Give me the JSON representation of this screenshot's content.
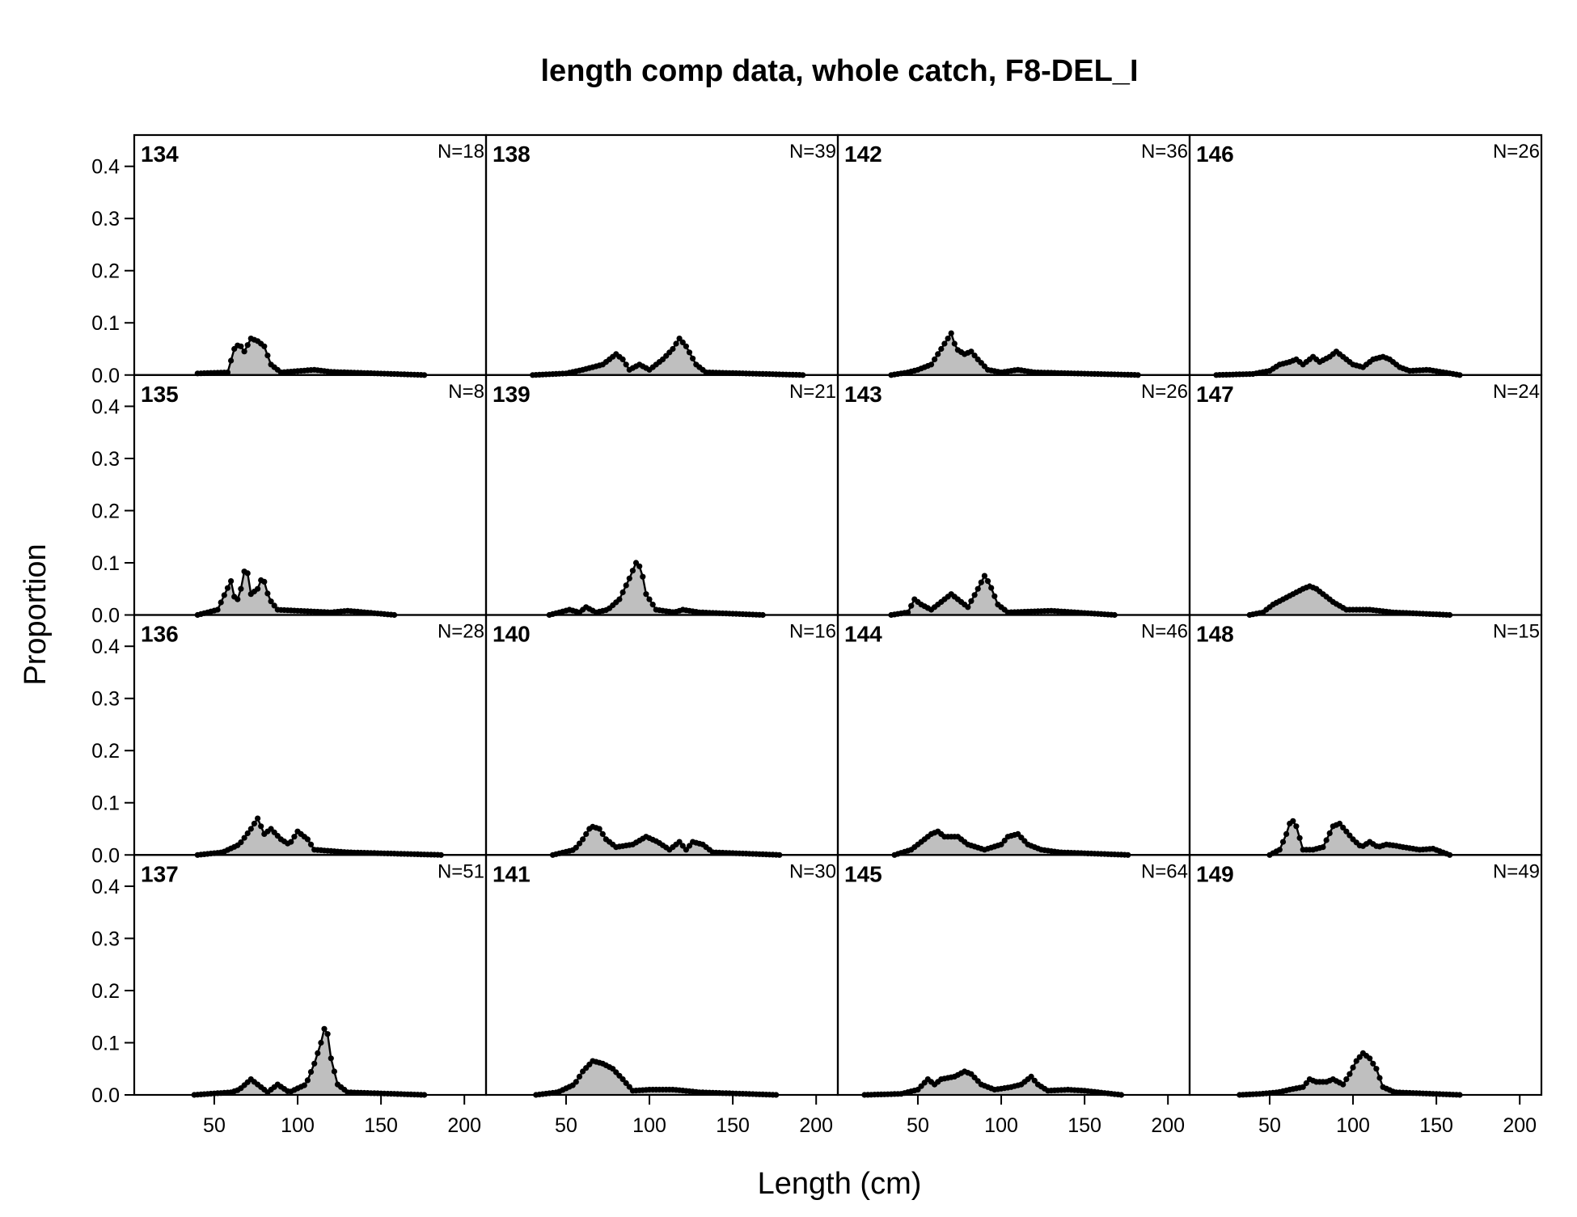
{
  "chart_data": {
    "type": "area",
    "title": "length comp data, whole catch, F8-DEL_I",
    "xlabel": "Length (cm)",
    "ylabel": "Proportion",
    "xlim": [
      2,
      213
    ],
    "ylim": [
      0,
      0.46
    ],
    "x_ticks": [
      50,
      100,
      150,
      200
    ],
    "x_tick_labels": [
      "50",
      "100",
      "150",
      "200"
    ],
    "y_ticks": [
      0,
      0.1,
      0.2,
      0.3,
      0.4
    ],
    "y_tick_labels": [
      "0.0",
      "0.1",
      "0.2",
      "0.3",
      "0.4"
    ],
    "grid": false,
    "layout": {
      "columns": 4,
      "rows": 4,
      "order": "column-major"
    },
    "fill_color": "#bfbfbf",
    "line_color": "#000000",
    "panels": [
      {
        "label": "134",
        "n_label": "N=18",
        "x_start": 40,
        "x_end": 176,
        "peaks": [
          [
            40,
            0.003
          ],
          [
            58,
            0.005
          ],
          [
            62,
            0.05
          ],
          [
            65,
            0.06
          ],
          [
            68,
            0.045
          ],
          [
            72,
            0.07
          ],
          [
            76,
            0.065
          ],
          [
            80,
            0.055
          ],
          [
            84,
            0.02
          ],
          [
            90,
            0.005
          ],
          [
            110,
            0.01
          ],
          [
            120,
            0.006
          ],
          [
            176,
            0.0
          ]
        ]
      },
      {
        "label": "135",
        "n_label": "N=8",
        "x_start": 40,
        "x_end": 158,
        "peaks": [
          [
            40,
            0.0
          ],
          [
            52,
            0.01
          ],
          [
            57,
            0.045
          ],
          [
            60,
            0.065
          ],
          [
            63,
            0.02
          ],
          [
            66,
            0.05
          ],
          [
            69,
            0.1
          ],
          [
            72,
            0.04
          ],
          [
            76,
            0.05
          ],
          [
            79,
            0.075
          ],
          [
            83,
            0.03
          ],
          [
            88,
            0.01
          ],
          [
            120,
            0.005
          ],
          [
            130,
            0.008
          ],
          [
            158,
            0.0
          ]
        ]
      },
      {
        "label": "136",
        "n_label": "N=28",
        "x_start": 40,
        "x_end": 186,
        "peaks": [
          [
            40,
            0.0
          ],
          [
            55,
            0.005
          ],
          [
            65,
            0.02
          ],
          [
            72,
            0.05
          ],
          [
            76,
            0.07
          ],
          [
            80,
            0.04
          ],
          [
            84,
            0.05
          ],
          [
            90,
            0.03
          ],
          [
            95,
            0.02
          ],
          [
            100,
            0.045
          ],
          [
            106,
            0.03
          ],
          [
            110,
            0.01
          ],
          [
            130,
            0.005
          ],
          [
            186,
            0.0
          ]
        ]
      },
      {
        "label": "137",
        "n_label": "N=51",
        "x_start": 38,
        "x_end": 176,
        "peaks": [
          [
            38,
            0.0
          ],
          [
            60,
            0.005
          ],
          [
            65,
            0.01
          ],
          [
            72,
            0.03
          ],
          [
            76,
            0.02
          ],
          [
            82,
            0.005
          ],
          [
            88,
            0.02
          ],
          [
            95,
            0.005
          ],
          [
            105,
            0.02
          ],
          [
            110,
            0.06
          ],
          [
            114,
            0.1
          ],
          [
            117,
            0.14
          ],
          [
            120,
            0.07
          ],
          [
            124,
            0.02
          ],
          [
            130,
            0.005
          ],
          [
            176,
            0.0
          ]
        ]
      },
      {
        "label": "138",
        "n_label": "N=39",
        "x_start": 30,
        "x_end": 192,
        "peaks": [
          [
            30,
            0.0
          ],
          [
            50,
            0.003
          ],
          [
            60,
            0.01
          ],
          [
            72,
            0.02
          ],
          [
            80,
            0.04
          ],
          [
            84,
            0.03
          ],
          [
            88,
            0.01
          ],
          [
            94,
            0.02
          ],
          [
            100,
            0.01
          ],
          [
            108,
            0.03
          ],
          [
            114,
            0.05
          ],
          [
            118,
            0.07
          ],
          [
            122,
            0.055
          ],
          [
            128,
            0.02
          ],
          [
            134,
            0.005
          ],
          [
            192,
            0.0
          ]
        ]
      },
      {
        "label": "139",
        "n_label": "N=21",
        "x_start": 40,
        "x_end": 168,
        "peaks": [
          [
            40,
            0.0
          ],
          [
            52,
            0.01
          ],
          [
            58,
            0.005
          ],
          [
            62,
            0.015
          ],
          [
            68,
            0.005
          ],
          [
            75,
            0.01
          ],
          [
            82,
            0.03
          ],
          [
            88,
            0.07
          ],
          [
            92,
            0.1
          ],
          [
            95,
            0.09
          ],
          [
            98,
            0.04
          ],
          [
            104,
            0.01
          ],
          [
            115,
            0.005
          ],
          [
            120,
            0.01
          ],
          [
            130,
            0.005
          ],
          [
            168,
            0.0
          ]
        ]
      },
      {
        "label": "140",
        "n_label": "N=16",
        "x_start": 42,
        "x_end": 178,
        "peaks": [
          [
            42,
            0.0
          ],
          [
            55,
            0.01
          ],
          [
            60,
            0.03
          ],
          [
            65,
            0.055
          ],
          [
            70,
            0.05
          ],
          [
            74,
            0.03
          ],
          [
            80,
            0.015
          ],
          [
            90,
            0.02
          ],
          [
            98,
            0.035
          ],
          [
            105,
            0.025
          ],
          [
            112,
            0.01
          ],
          [
            118,
            0.025
          ],
          [
            122,
            0.01
          ],
          [
            126,
            0.025
          ],
          [
            132,
            0.02
          ],
          [
            138,
            0.005
          ],
          [
            178,
            0.0
          ]
        ]
      },
      {
        "label": "141",
        "n_label": "N=30",
        "x_start": 32,
        "x_end": 176,
        "peaks": [
          [
            32,
            0.0
          ],
          [
            45,
            0.005
          ],
          [
            55,
            0.02
          ],
          [
            60,
            0.045
          ],
          [
            66,
            0.065
          ],
          [
            72,
            0.06
          ],
          [
            78,
            0.05
          ],
          [
            84,
            0.03
          ],
          [
            90,
            0.008
          ],
          [
            100,
            0.01
          ],
          [
            115,
            0.01
          ],
          [
            130,
            0.005
          ],
          [
            176,
            0.0
          ]
        ]
      },
      {
        "label": "142",
        "n_label": "N=36",
        "x_start": 34,
        "x_end": 182,
        "peaks": [
          [
            34,
            0.0
          ],
          [
            44,
            0.005
          ],
          [
            50,
            0.01
          ],
          [
            58,
            0.02
          ],
          [
            63,
            0.045
          ],
          [
            67,
            0.065
          ],
          [
            70,
            0.08
          ],
          [
            73,
            0.05
          ],
          [
            78,
            0.04
          ],
          [
            82,
            0.045
          ],
          [
            86,
            0.03
          ],
          [
            92,
            0.01
          ],
          [
            100,
            0.005
          ],
          [
            110,
            0.01
          ],
          [
            120,
            0.005
          ],
          [
            182,
            0.0
          ]
        ]
      },
      {
        "label": "143",
        "n_label": "N=26",
        "x_start": 34,
        "x_end": 168,
        "peaks": [
          [
            34,
            0.0
          ],
          [
            44,
            0.005
          ],
          [
            48,
            0.03
          ],
          [
            52,
            0.02
          ],
          [
            58,
            0.01
          ],
          [
            66,
            0.03
          ],
          [
            70,
            0.04
          ],
          [
            74,
            0.03
          ],
          [
            80,
            0.015
          ],
          [
            86,
            0.05
          ],
          [
            90,
            0.075
          ],
          [
            93,
            0.06
          ],
          [
            98,
            0.02
          ],
          [
            104,
            0.005
          ],
          [
            130,
            0.008
          ],
          [
            168,
            0.0
          ]
        ]
      },
      {
        "label": "144",
        "n_label": "N=46",
        "x_start": 36,
        "x_end": 176,
        "peaks": [
          [
            36,
            0.0
          ],
          [
            46,
            0.01
          ],
          [
            52,
            0.025
          ],
          [
            58,
            0.04
          ],
          [
            62,
            0.045
          ],
          [
            66,
            0.035
          ],
          [
            74,
            0.035
          ],
          [
            80,
            0.02
          ],
          [
            90,
            0.01
          ],
          [
            100,
            0.02
          ],
          [
            104,
            0.035
          ],
          [
            110,
            0.04
          ],
          [
            116,
            0.02
          ],
          [
            124,
            0.01
          ],
          [
            135,
            0.005
          ],
          [
            176,
            0.0
          ]
        ]
      },
      {
        "label": "145",
        "n_label": "N=64",
        "x_start": 18,
        "x_end": 172,
        "peaks": [
          [
            18,
            0.0
          ],
          [
            40,
            0.002
          ],
          [
            50,
            0.01
          ],
          [
            56,
            0.03
          ],
          [
            60,
            0.02
          ],
          [
            64,
            0.03
          ],
          [
            72,
            0.035
          ],
          [
            78,
            0.045
          ],
          [
            82,
            0.04
          ],
          [
            88,
            0.02
          ],
          [
            96,
            0.01
          ],
          [
            106,
            0.015
          ],
          [
            112,
            0.02
          ],
          [
            118,
            0.035
          ],
          [
            122,
            0.02
          ],
          [
            128,
            0.008
          ],
          [
            140,
            0.01
          ],
          [
            150,
            0.008
          ],
          [
            172,
            0.0
          ]
        ]
      },
      {
        "label": "146",
        "n_label": "N=26",
        "x_start": 18,
        "x_end": 164,
        "peaks": [
          [
            18,
            0.0
          ],
          [
            40,
            0.002
          ],
          [
            50,
            0.008
          ],
          [
            56,
            0.02
          ],
          [
            62,
            0.025
          ],
          [
            66,
            0.03
          ],
          [
            70,
            0.02
          ],
          [
            76,
            0.035
          ],
          [
            80,
            0.025
          ],
          [
            86,
            0.035
          ],
          [
            90,
            0.045
          ],
          [
            94,
            0.035
          ],
          [
            100,
            0.02
          ],
          [
            106,
            0.015
          ],
          [
            112,
            0.03
          ],
          [
            118,
            0.035
          ],
          [
            122,
            0.03
          ],
          [
            128,
            0.015
          ],
          [
            134,
            0.008
          ],
          [
            145,
            0.01
          ],
          [
            164,
            0.0
          ]
        ]
      },
      {
        "label": "147",
        "n_label": "N=24",
        "x_start": 38,
        "x_end": 158,
        "peaks": [
          [
            38,
            0.0
          ],
          [
            46,
            0.005
          ],
          [
            52,
            0.02
          ],
          [
            58,
            0.03
          ],
          [
            64,
            0.04
          ],
          [
            70,
            0.05
          ],
          [
            74,
            0.055
          ],
          [
            78,
            0.05
          ],
          [
            82,
            0.04
          ],
          [
            88,
            0.025
          ],
          [
            96,
            0.01
          ],
          [
            110,
            0.01
          ],
          [
            124,
            0.005
          ],
          [
            158,
            0.0
          ]
        ]
      },
      {
        "label": "148",
        "n_label": "N=15",
        "x_start": 50,
        "x_end": 158,
        "peaks": [
          [
            50,
            0.0
          ],
          [
            56,
            0.01
          ],
          [
            60,
            0.04
          ],
          [
            63,
            0.07
          ],
          [
            66,
            0.055
          ],
          [
            70,
            0.01
          ],
          [
            76,
            0.01
          ],
          [
            82,
            0.015
          ],
          [
            88,
            0.055
          ],
          [
            92,
            0.06
          ],
          [
            96,
            0.045
          ],
          [
            100,
            0.03
          ],
          [
            105,
            0.015
          ],
          [
            110,
            0.025
          ],
          [
            115,
            0.015
          ],
          [
            120,
            0.02
          ],
          [
            125,
            0.018
          ],
          [
            130,
            0.015
          ],
          [
            140,
            0.01
          ],
          [
            148,
            0.012
          ],
          [
            158,
            0.0
          ]
        ]
      },
      {
        "label": "149",
        "n_label": "N=49",
        "x_start": 32,
        "x_end": 164,
        "peaks": [
          [
            32,
            0.0
          ],
          [
            45,
            0.002
          ],
          [
            55,
            0.005
          ],
          [
            62,
            0.01
          ],
          [
            70,
            0.015
          ],
          [
            74,
            0.03
          ],
          [
            78,
            0.025
          ],
          [
            84,
            0.025
          ],
          [
            88,
            0.03
          ],
          [
            94,
            0.02
          ],
          [
            98,
            0.04
          ],
          [
            102,
            0.065
          ],
          [
            106,
            0.08
          ],
          [
            110,
            0.07
          ],
          [
            114,
            0.05
          ],
          [
            118,
            0.015
          ],
          [
            125,
            0.005
          ],
          [
            164,
            0.0
          ]
        ]
      }
    ]
  }
}
